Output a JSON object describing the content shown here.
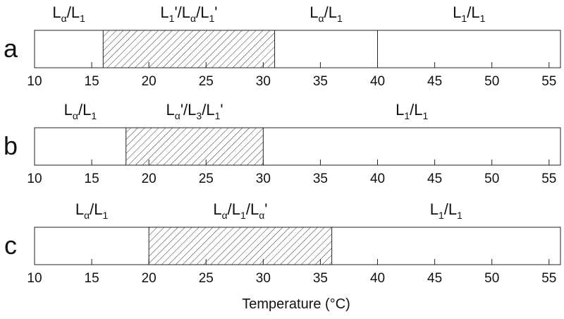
{
  "chart_data": {
    "type": "phase-bar",
    "xlabel": "Temperature (°C)",
    "xlim": [
      10,
      56
    ],
    "xticks": [
      10,
      15,
      20,
      25,
      30,
      35,
      40,
      45,
      50,
      55
    ],
    "panels": [
      {
        "name": "a",
        "boundaries": [
          10,
          16,
          31,
          40,
          56
        ],
        "regions": [
          {
            "hatched": false,
            "label": [
              {
                "text": "L"
              },
              {
                "text": "α",
                "sub": true
              },
              {
                "text": "/L"
              },
              {
                "text": "1",
                "sub": true
              }
            ]
          },
          {
            "hatched": true,
            "label": [
              {
                "text": "L"
              },
              {
                "text": "1",
                "sub": true
              },
              {
                "text": "'/L"
              },
              {
                "text": "α",
                "sub": true
              },
              {
                "text": "/L"
              },
              {
                "text": "1",
                "sub": true
              },
              {
                "text": "'"
              }
            ]
          },
          {
            "hatched": false,
            "label": [
              {
                "text": "L"
              },
              {
                "text": "α",
                "sub": true
              },
              {
                "text": "/L"
              },
              {
                "text": "1",
                "sub": true
              }
            ]
          },
          {
            "hatched": false,
            "label": [
              {
                "text": "L"
              },
              {
                "text": "1",
                "sub": true
              },
              {
                "text": "/L"
              },
              {
                "text": "1",
                "sub": true
              }
            ]
          }
        ]
      },
      {
        "name": "b",
        "boundaries": [
          10,
          18,
          30,
          56
        ],
        "regions": [
          {
            "hatched": false,
            "label": [
              {
                "text": "L"
              },
              {
                "text": "α",
                "sub": true
              },
              {
                "text": "/L"
              },
              {
                "text": "1",
                "sub": true
              }
            ]
          },
          {
            "hatched": true,
            "label": [
              {
                "text": "L"
              },
              {
                "text": "α",
                "sub": true
              },
              {
                "text": "'/L"
              },
              {
                "text": "3",
                "sub": true
              },
              {
                "text": "/L"
              },
              {
                "text": "1",
                "sub": true
              },
              {
                "text": "'"
              }
            ]
          },
          {
            "hatched": false,
            "label": [
              {
                "text": "L"
              },
              {
                "text": "1",
                "sub": true
              },
              {
                "text": "/L"
              },
              {
                "text": "1",
                "sub": true
              }
            ]
          }
        ]
      },
      {
        "name": "c",
        "boundaries": [
          10,
          20,
          36,
          56
        ],
        "regions": [
          {
            "hatched": false,
            "label": [
              {
                "text": "L"
              },
              {
                "text": "α",
                "sub": true
              },
              {
                "text": "/L"
              },
              {
                "text": "1",
                "sub": true
              }
            ]
          },
          {
            "hatched": true,
            "label": [
              {
                "text": "L"
              },
              {
                "text": "α",
                "sub": true
              },
              {
                "text": "/L"
              },
              {
                "text": "1",
                "sub": true
              },
              {
                "text": "/L"
              },
              {
                "text": "α",
                "sub": true
              },
              {
                "text": "'"
              }
            ]
          },
          {
            "hatched": false,
            "label": [
              {
                "text": "L"
              },
              {
                "text": "1",
                "sub": true
              },
              {
                "text": "/L"
              },
              {
                "text": "1",
                "sub": true
              }
            ]
          }
        ]
      }
    ]
  }
}
